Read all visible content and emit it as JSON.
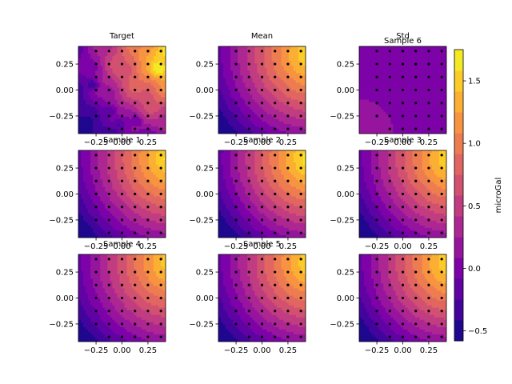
{
  "chart_data": {
    "type": "heatmap",
    "colormap": "plasma",
    "colorbar": {
      "label": "microGal",
      "range": [
        -0.58,
        1.75
      ],
      "ticks": [
        -0.5,
        0.0,
        0.5,
        1.0,
        1.5
      ],
      "tick_labels": [
        "−0.5",
        "0.0",
        "0.5",
        "1.0",
        "1.5"
      ]
    },
    "xlim": [
      -0.42,
      0.42
    ],
    "ylim": [
      -0.42,
      0.42
    ],
    "xticks": [
      -0.25,
      0.0,
      0.25
    ],
    "xtick_labels": [
      "−0.25",
      "0.00",
      "0.25"
    ],
    "yticks": [
      0.25,
      0.0,
      -0.25
    ],
    "ytick_labels": [
      "0.25",
      "0.00",
      "−0.25"
    ],
    "stations": {
      "x": [
        -0.25,
        -0.125,
        0.0,
        0.125,
        0.25,
        0.375
      ],
      "y": [
        -0.375,
        -0.25,
        -0.125,
        0.0,
        0.125,
        0.25,
        0.375
      ],
      "excluded": [
        [
          -0.25,
          -0.375
        ]
      ]
    },
    "panels": [
      {
        "title": "Target",
        "field": "target"
      },
      {
        "title": "Mean",
        "field": "smooth",
        "amp": 1.0
      },
      {
        "title": "Std",
        "subtitle": "Sample 6",
        "field": "std"
      },
      {
        "title": "Sample 1",
        "field": "smooth",
        "amp": 1.02
      },
      {
        "title": "Sample 2",
        "field": "smooth",
        "amp": 1.05
      },
      {
        "title": "Sample 3",
        "field": "smooth",
        "amp": 1.0
      },
      {
        "title": "Sample 4",
        "field": "smooth",
        "amp": 0.95
      },
      {
        "title": "Sample 5",
        "field": "smooth",
        "amp": 0.98
      },
      {
        "title": "",
        "field": "smooth",
        "amp": 1.0
      }
    ]
  }
}
